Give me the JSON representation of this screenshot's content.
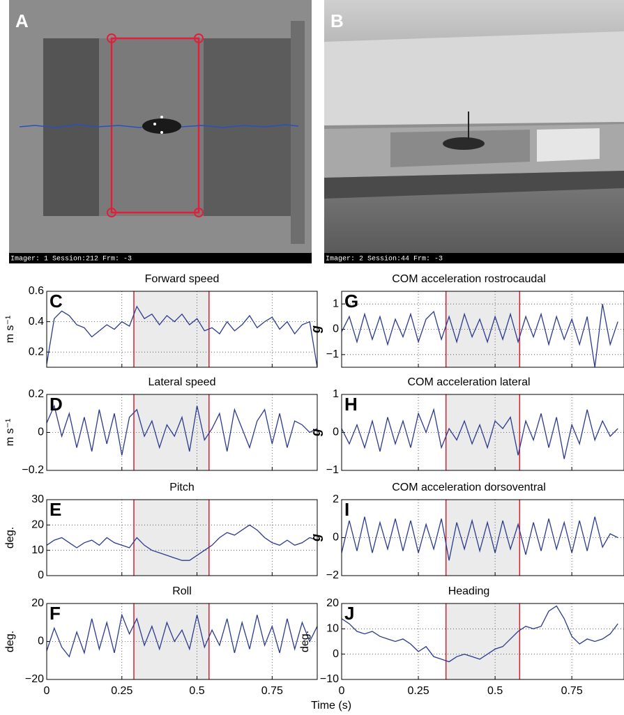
{
  "photos": [
    {
      "label": "A",
      "caption": "Imager: 1  Session:212  Frm:  -3"
    },
    {
      "label": "B",
      "caption": "Imager: 2  Session:44  Frm:  -3"
    }
  ],
  "xlabel": "Time (s)",
  "chart_data": [
    {
      "type": "line",
      "title": "Forward speed",
      "panel_label": "C",
      "ylabel": "m s⁻¹",
      "x": [
        0,
        0.025,
        0.05,
        0.075,
        0.1,
        0.125,
        0.15,
        0.175,
        0.2,
        0.225,
        0.25,
        0.275,
        0.3,
        0.325,
        0.35,
        0.375,
        0.4,
        0.425,
        0.45,
        0.475,
        0.5,
        0.525,
        0.55,
        0.575,
        0.6,
        0.625,
        0.65,
        0.675,
        0.7,
        0.725,
        0.75,
        0.775,
        0.8,
        0.825,
        0.85,
        0.875,
        0.9
      ],
      "series": [
        {
          "color": "#2b3a8f",
          "values": [
            0.12,
            0.42,
            0.47,
            0.44,
            0.38,
            0.36,
            0.3,
            0.34,
            0.38,
            0.35,
            0.4,
            0.37,
            0.5,
            0.42,
            0.45,
            0.38,
            0.44,
            0.4,
            0.45,
            0.38,
            0.42,
            0.34,
            0.36,
            0.32,
            0.4,
            0.34,
            0.38,
            0.44,
            0.36,
            0.4,
            0.43,
            0.35,
            0.4,
            0.32,
            0.38,
            0.4,
            0.1
          ]
        }
      ],
      "xlim": [
        0,
        0.9
      ],
      "ylim": [
        0.1,
        0.6
      ],
      "xticks": [
        0,
        0.25,
        0.5,
        0.75
      ],
      "yticks": [
        0.2,
        0.4,
        0.6
      ],
      "grid": true,
      "shaded_range": [
        0.29,
        0.54
      ],
      "shade_color": "#ebebeb",
      "edge_color": "#d9202e"
    },
    {
      "type": "line",
      "title": "Lateral speed",
      "panel_label": "D",
      "ylabel": "m s⁻¹",
      "x": [
        0,
        0.025,
        0.05,
        0.075,
        0.1,
        0.125,
        0.15,
        0.175,
        0.2,
        0.225,
        0.25,
        0.275,
        0.3,
        0.325,
        0.35,
        0.375,
        0.4,
        0.425,
        0.45,
        0.475,
        0.5,
        0.525,
        0.55,
        0.575,
        0.6,
        0.625,
        0.65,
        0.675,
        0.7,
        0.725,
        0.75,
        0.775,
        0.8,
        0.825,
        0.85,
        0.875,
        0.9
      ],
      "series": [
        {
          "color": "#2b3a8f",
          "values": [
            0.05,
            0.14,
            -0.02,
            0.1,
            -0.08,
            0.08,
            -0.1,
            0.12,
            -0.06,
            0.1,
            -0.12,
            0.08,
            0.12,
            -0.02,
            0.06,
            -0.08,
            0.04,
            -0.02,
            0.08,
            -0.1,
            0.14,
            -0.04,
            0.02,
            0.1,
            -0.1,
            0.12,
            0.02,
            -0.08,
            0.06,
            0.12,
            -0.06,
            0.1,
            -0.08,
            0.06,
            0.04,
            0,
            0.02
          ]
        }
      ],
      "xlim": [
        0,
        0.9
      ],
      "ylim": [
        -0.2,
        0.2
      ],
      "xticks": [
        0,
        0.25,
        0.5,
        0.75
      ],
      "yticks": [
        {
          "value": -0.2,
          "label": "−0.2"
        },
        0,
        0.2
      ],
      "grid": true,
      "shaded_range": [
        0.29,
        0.54
      ],
      "shade_color": "#ebebeb",
      "edge_color": "#d9202e"
    },
    {
      "type": "line",
      "title": "Pitch",
      "panel_label": "E",
      "ylabel": "deg.",
      "x": [
        0,
        0.025,
        0.05,
        0.075,
        0.1,
        0.125,
        0.15,
        0.175,
        0.2,
        0.225,
        0.25,
        0.275,
        0.3,
        0.325,
        0.35,
        0.375,
        0.4,
        0.425,
        0.45,
        0.475,
        0.5,
        0.525,
        0.55,
        0.575,
        0.6,
        0.625,
        0.65,
        0.675,
        0.7,
        0.725,
        0.75,
        0.775,
        0.8,
        0.825,
        0.85,
        0.875,
        0.9
      ],
      "series": [
        {
          "color": "#2b3a8f",
          "values": [
            12,
            14,
            15,
            13,
            11,
            13,
            14,
            12,
            15,
            13,
            12,
            11,
            15,
            12,
            10,
            9,
            8,
            7,
            6,
            6,
            8,
            10,
            12,
            15,
            17,
            16,
            18,
            20,
            18,
            15,
            13,
            12,
            14,
            12,
            13,
            15,
            14
          ]
        }
      ],
      "xlim": [
        0,
        0.9
      ],
      "ylim": [
        0,
        30
      ],
      "xticks": [
        0,
        0.25,
        0.5,
        0.75
      ],
      "yticks": [
        0,
        10,
        20,
        30
      ],
      "grid": true,
      "shaded_range": [
        0.29,
        0.54
      ],
      "shade_color": "#ebebeb",
      "edge_color": "#d9202e"
    },
    {
      "type": "line",
      "title": "Roll",
      "panel_label": "F",
      "ylabel": "deg.",
      "x": [
        0,
        0.025,
        0.05,
        0.075,
        0.1,
        0.125,
        0.15,
        0.175,
        0.2,
        0.225,
        0.25,
        0.275,
        0.3,
        0.325,
        0.35,
        0.375,
        0.4,
        0.425,
        0.45,
        0.475,
        0.5,
        0.525,
        0.55,
        0.575,
        0.6,
        0.625,
        0.65,
        0.675,
        0.7,
        0.725,
        0.75,
        0.775,
        0.8,
        0.825,
        0.85,
        0.875,
        0.9
      ],
      "series": [
        {
          "color": "#2b3a8f",
          "values": [
            -5,
            7,
            -3,
            -8,
            5,
            -6,
            12,
            -4,
            10,
            -6,
            14,
            4,
            12,
            -2,
            8,
            -4,
            10,
            0,
            6,
            -4,
            14,
            -3,
            6,
            -2,
            12,
            -6,
            10,
            -4,
            14,
            -2,
            8,
            -6,
            12,
            -4,
            10,
            0,
            8
          ]
        }
      ],
      "xlim": [
        0,
        0.9
      ],
      "ylim": [
        -20,
        20
      ],
      "xticks": [
        0,
        0.25,
        0.5,
        0.75
      ],
      "yticks": [
        {
          "value": -20,
          "label": "−20"
        },
        0,
        20
      ],
      "grid": true,
      "shaded_range": [
        0.29,
        0.54
      ],
      "shade_color": "#ebebeb",
      "edge_color": "#d9202e"
    },
    {
      "type": "line",
      "title": "COM acceleration rostrocaudal",
      "panel_label": "G",
      "ylabel": "g",
      "x": [
        0,
        0.025,
        0.05,
        0.075,
        0.1,
        0.125,
        0.15,
        0.175,
        0.2,
        0.225,
        0.25,
        0.275,
        0.3,
        0.325,
        0.35,
        0.375,
        0.4,
        0.425,
        0.45,
        0.475,
        0.5,
        0.525,
        0.55,
        0.575,
        0.6,
        0.625,
        0.65,
        0.675,
        0.7,
        0.725,
        0.75,
        0.775,
        0.8,
        0.825,
        0.85,
        0.875,
        0.9
      ],
      "series": [
        {
          "color": "#2b3a8f",
          "values": [
            -0.1,
            0.5,
            -0.5,
            0.6,
            -0.4,
            0.5,
            -0.6,
            0.4,
            -0.3,
            0.6,
            -0.5,
            0.4,
            0.7,
            -0.4,
            0.5,
            -0.5,
            0.6,
            -0.3,
            0.4,
            -0.5,
            0.5,
            -0.4,
            0.6,
            -0.5,
            0.5,
            -0.3,
            0.6,
            -0.6,
            0.5,
            -0.4,
            0.4,
            -0.6,
            0.5,
            -1.5,
            1.0,
            -0.6,
            0.3
          ]
        }
      ],
      "xlim": [
        0,
        0.92
      ],
      "ylim": [
        -1.5,
        1.5
      ],
      "xticks": [
        0,
        0.25,
        0.5,
        0.75
      ],
      "yticks": [
        {
          "value": -1,
          "label": "−1"
        },
        0,
        1
      ],
      "grid": true,
      "shaded_range": [
        0.34,
        0.58
      ],
      "shade_color": "#ebebeb",
      "edge_color": "#d9202e"
    },
    {
      "type": "line",
      "title": "COM acceleration lateral",
      "panel_label": "H",
      "ylabel": "g",
      "x": [
        0,
        0.025,
        0.05,
        0.075,
        0.1,
        0.125,
        0.15,
        0.175,
        0.2,
        0.225,
        0.25,
        0.275,
        0.3,
        0.325,
        0.35,
        0.375,
        0.4,
        0.425,
        0.45,
        0.475,
        0.5,
        0.525,
        0.55,
        0.575,
        0.6,
        0.625,
        0.65,
        0.675,
        0.7,
        0.725,
        0.75,
        0.775,
        0.8,
        0.825,
        0.85,
        0.875,
        0.9
      ],
      "series": [
        {
          "color": "#2b3a8f",
          "values": [
            0.1,
            -0.3,
            0.2,
            -0.4,
            0.3,
            -0.5,
            0.4,
            -0.3,
            0.3,
            -0.4,
            0.5,
            0,
            0.6,
            -0.4,
            0.1,
            -0.2,
            0.3,
            -0.3,
            0.2,
            -0.4,
            0.3,
            0.1,
            0.4,
            -0.6,
            0.3,
            -0.2,
            0.5,
            -0.4,
            0.4,
            -0.7,
            0.2,
            -0.3,
            0.6,
            -0.2,
            0.3,
            -0.1,
            0.1
          ]
        }
      ],
      "xlim": [
        0,
        0.92
      ],
      "ylim": [
        -1,
        1
      ],
      "xticks": [
        0,
        0.25,
        0.5,
        0.75
      ],
      "yticks": [
        {
          "value": -1,
          "label": "−1"
        },
        0,
        1
      ],
      "grid": true,
      "shaded_range": [
        0.34,
        0.58
      ],
      "shade_color": "#ebebeb",
      "edge_color": "#d9202e"
    },
    {
      "type": "line",
      "title": "COM acceleration dorsoventral",
      "panel_label": "I",
      "ylabel": "g",
      "x": [
        0,
        0.025,
        0.05,
        0.075,
        0.1,
        0.125,
        0.15,
        0.175,
        0.2,
        0.225,
        0.25,
        0.275,
        0.3,
        0.325,
        0.35,
        0.375,
        0.4,
        0.425,
        0.45,
        0.475,
        0.5,
        0.525,
        0.55,
        0.575,
        0.6,
        0.625,
        0.65,
        0.675,
        0.7,
        0.725,
        0.75,
        0.775,
        0.8,
        0.825,
        0.85,
        0.875,
        0.9
      ],
      "series": [
        {
          "color": "#2b3a8f",
          "values": [
            -0.8,
            0.9,
            -0.7,
            1.1,
            -0.8,
            0.8,
            -0.6,
            1.0,
            -0.7,
            0.9,
            -0.8,
            0.7,
            -0.6,
            1.0,
            -1.2,
            0.8,
            -0.6,
            0.9,
            -0.7,
            0.8,
            -0.8,
            0.9,
            -0.6,
            0.7,
            -0.9,
            0.8,
            -0.7,
            1.0,
            -0.6,
            0.8,
            -0.8,
            0.9,
            -0.7,
            1.1,
            -0.5,
            0.2,
            0
          ]
        }
      ],
      "xlim": [
        0,
        0.92
      ],
      "ylim": [
        -2,
        2
      ],
      "xticks": [
        0,
        0.25,
        0.5,
        0.75
      ],
      "yticks": [
        {
          "value": -2,
          "label": "−2"
        },
        0,
        2
      ],
      "grid": true,
      "shaded_range": [
        0.34,
        0.58
      ],
      "shade_color": "#ebebeb",
      "edge_color": "#d9202e"
    },
    {
      "type": "line",
      "title": "Heading",
      "panel_label": "J",
      "ylabel": "deg.",
      "x": [
        0,
        0.025,
        0.05,
        0.075,
        0.1,
        0.125,
        0.15,
        0.175,
        0.2,
        0.225,
        0.25,
        0.275,
        0.3,
        0.325,
        0.35,
        0.375,
        0.4,
        0.425,
        0.45,
        0.475,
        0.5,
        0.525,
        0.55,
        0.575,
        0.6,
        0.625,
        0.65,
        0.675,
        0.7,
        0.725,
        0.75,
        0.775,
        0.8,
        0.825,
        0.85,
        0.875,
        0.9
      ],
      "series": [
        {
          "color": "#2b3a8f",
          "values": [
            14,
            12,
            9,
            8,
            9,
            7,
            6,
            5,
            6,
            4,
            1,
            3,
            -1,
            -2,
            -3,
            -1,
            0,
            -1,
            -2,
            0,
            2,
            3,
            6,
            9,
            11,
            10,
            11,
            17,
            19,
            14,
            7,
            4,
            6,
            5,
            6,
            8,
            12
          ]
        }
      ],
      "xlim": [
        0,
        0.92
      ],
      "ylim": [
        -10,
        20
      ],
      "xticks": [
        0,
        0.25,
        0.5,
        0.75
      ],
      "yticks": [
        {
          "value": -10,
          "label": "−10"
        },
        0,
        10,
        20
      ],
      "grid": true,
      "shaded_range": [
        0.34,
        0.58
      ],
      "shade_color": "#ebebeb",
      "edge_color": "#d9202e"
    }
  ]
}
